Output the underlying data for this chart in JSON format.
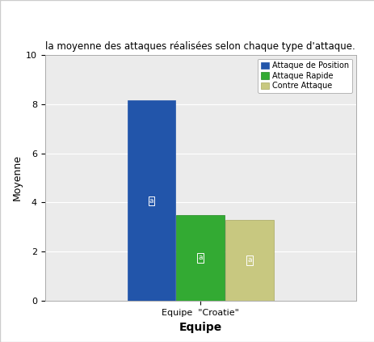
{
  "title": "la moyenne des attaques réalisées selon chaque type d'attaque.",
  "xlabel": "Equipe",
  "ylabel": "Moyenne",
  "xtick_label": "Equipe  «Croatie»",
  "xtick_label2": "Equipe  \"Croatie\"",
  "ylim": [
    0,
    10
  ],
  "yticks": [
    0,
    2,
    4,
    6,
    8,
    10
  ],
  "bar_values": [
    8.14,
    3.5,
    3.3
  ],
  "bar_colors": [
    "#2255aa",
    "#33aa33",
    "#c8c880"
  ],
  "bar_edge_colors": [
    "#2255aa",
    "#228822",
    "#a8a860"
  ],
  "legend_labels": [
    "Attaque de Position",
    "Attaque Rapide",
    "Contre Attaque"
  ],
  "n_labels": [
    "a",
    "a",
    "a"
  ],
  "fig_bg_color": "#ffffff",
  "plot_bg_color": "#ebebeb",
  "outer_bg_color": "#f5f5f5",
  "title_fontsize": 8.5,
  "axis_label_fontsize": 9,
  "tick_fontsize": 8,
  "legend_fontsize": 7,
  "bar_width": 0.28,
  "figsize": [
    4.64,
    4.23
  ],
  "dpi": 100
}
